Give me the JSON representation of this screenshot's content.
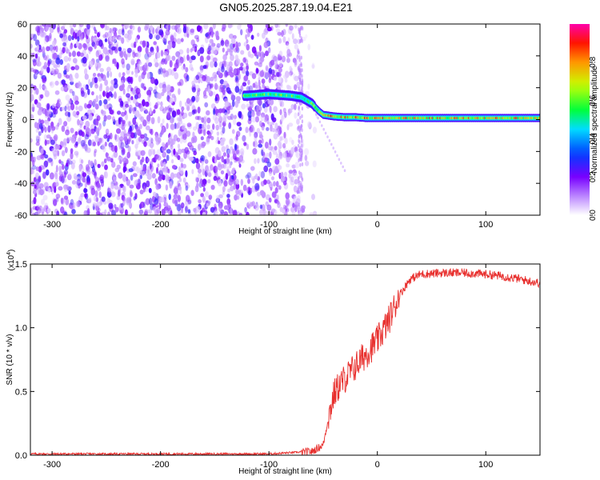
{
  "title": "GN05.2025.287.19.04.E21",
  "chart_data": [
    {
      "type": "heatmap",
      "xlabel": "Height of straight line (km)",
      "ylabel": "Frequency (Hz)",
      "xlim": [
        -320,
        150
      ],
      "ylim": [
        -60,
        60
      ],
      "xticks": [
        -300,
        -200,
        -100,
        0,
        100
      ],
      "yticks": [
        -60,
        -40,
        -20,
        0,
        20,
        40,
        60
      ],
      "colorbar": {
        "label": "Normalized spectral amplitude",
        "range": [
          0,
          1
        ],
        "ticks": [
          "0.0",
          "0.2",
          "0.4",
          "0.6",
          "0.8"
        ]
      },
      "ridge": {
        "x": [
          -120,
          -100,
          -80,
          -70,
          -60,
          -55,
          -50,
          -40,
          -30,
          -20,
          -10,
          0,
          50,
          100,
          150
        ],
        "y": [
          15,
          16,
          15,
          14,
          10,
          6,
          3,
          2,
          1.5,
          1.5,
          1,
          1,
          1,
          1,
          1
        ]
      },
      "noise_region_x": [
        -320,
        -70
      ]
    },
    {
      "type": "line",
      "xlabel": "Height of straight line (km)",
      "ylabel": "SNR (10 * v/v)",
      "scale_label": "(x10",
      "scale_exp": "4",
      "xlim": [
        -320,
        150
      ],
      "ylim": [
        0,
        1.5
      ],
      "xticks": [
        -300,
        -200,
        -100,
        0,
        100
      ],
      "yticks": [
        "0.0",
        "0.5",
        "1.0",
        "1.5"
      ],
      "color": "#e8302e",
      "series": [
        {
          "x": [
            -320,
            -100,
            -60,
            -50,
            -45,
            -40,
            -35,
            -30,
            -20,
            -10,
            0,
            10,
            20,
            30,
            40,
            60,
            80,
            100,
            120,
            150
          ],
          "y": [
            0.01,
            0.01,
            0.03,
            0.08,
            0.3,
            0.48,
            0.55,
            0.6,
            0.7,
            0.8,
            0.9,
            1.05,
            1.25,
            1.38,
            1.42,
            1.43,
            1.43,
            1.42,
            1.4,
            1.35
          ]
        }
      ]
    }
  ]
}
